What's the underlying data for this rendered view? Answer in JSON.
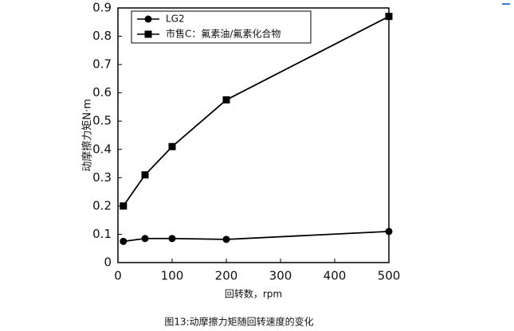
{
  "chart_data": {
    "type": "line",
    "caption": "图13:动摩擦力矩随回转速度的变化",
    "x_label": "回转数，rpm",
    "y_label": "动摩擦力矩N·m",
    "x": [
      10,
      50,
      100,
      200,
      500
    ],
    "series": [
      {
        "name": "LG2",
        "color": "#000000",
        "marker": "circle",
        "values": [
          0.075,
          0.085,
          0.085,
          0.082,
          0.11
        ]
      },
      {
        "name": "市售C：氟素油/氟素化合物",
        "color": "#000000",
        "marker": "square",
        "values": [
          0.2,
          0.31,
          0.41,
          0.575,
          0.87
        ]
      }
    ],
    "xlim": [
      0,
      500
    ],
    "xticks": [
      0,
      100,
      200,
      300,
      400,
      500
    ],
    "ylim": [
      0,
      0.9
    ],
    "yticks": [
      0,
      0.1,
      0.2,
      0.3,
      0.4,
      0.5,
      0.6,
      0.7,
      0.8,
      0.9
    ],
    "grid": false
  }
}
